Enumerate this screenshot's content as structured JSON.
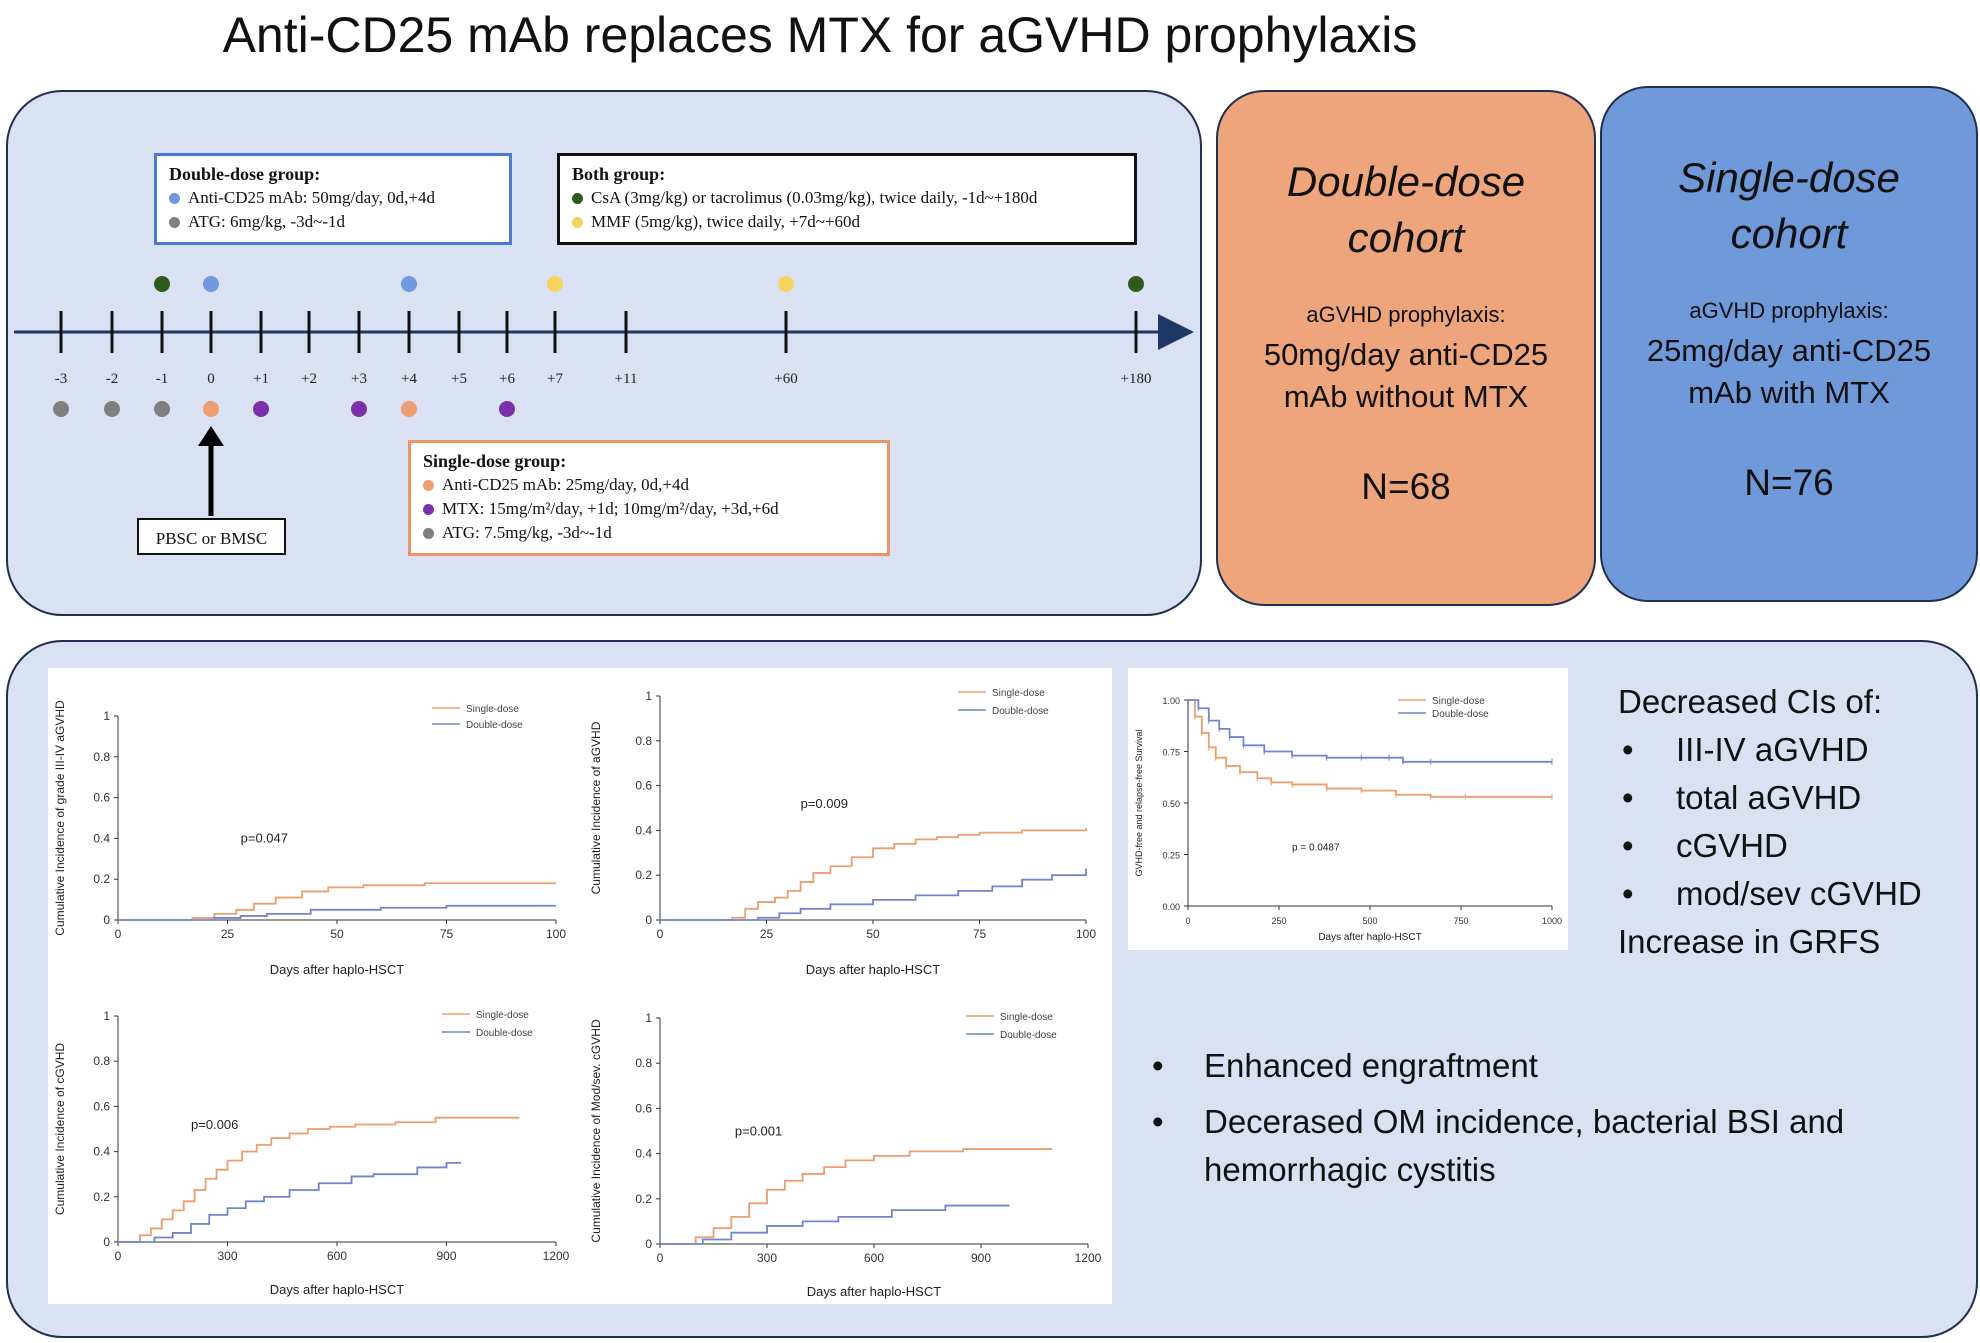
{
  "title": "Anti-CD25 mAb replaces MTX for aGVHD prophylaxis",
  "colors": {
    "panel_bg": "#d9e1f2",
    "double_orange": "#eea57c",
    "single_blue": "#6f99d9",
    "dot_green": "#2e5a1c",
    "dot_blue": "#6f9ae0",
    "dot_gray": "#7f7f7f",
    "dot_yellow": "#f7d35c",
    "dot_orange": "#ef9c6e",
    "dot_purple": "#7a2fa8",
    "curve_single": "#ef9c6e",
    "curve_double": "#6f86cf"
  },
  "timeline": {
    "days": [
      "-3",
      "-2",
      "-1",
      "0",
      "+1",
      "+2",
      "+3",
      "+4",
      "+5",
      "+6",
      "+7",
      "+11",
      "+60",
      "+180"
    ],
    "top_dots": [
      {
        "day": "-1",
        "color": "#2e5a1c"
      },
      {
        "day": "0",
        "color": "#6f9ae0"
      },
      {
        "day": "+4",
        "color": "#6f9ae0"
      },
      {
        "day": "+7",
        "color": "#f7d35c"
      },
      {
        "day": "+60",
        "color": "#f7d35c"
      },
      {
        "day": "+180",
        "color": "#2e5a1c"
      }
    ],
    "bottom_dots": [
      {
        "day": "-3",
        "color": "#7f7f7f"
      },
      {
        "day": "-2",
        "color": "#7f7f7f"
      },
      {
        "day": "-1",
        "color": "#7f7f7f"
      },
      {
        "day": "0",
        "color": "#ef9c6e"
      },
      {
        "day": "+1",
        "color": "#7a2fa8"
      },
      {
        "day": "+3",
        "color": "#7a2fa8"
      },
      {
        "day": "+4",
        "color": "#ef9c6e"
      },
      {
        "day": "+6",
        "color": "#7a2fa8"
      }
    ],
    "cell_source": "PBSC or BMSC"
  },
  "legend_double": {
    "title": "Double-dose group:",
    "items": [
      {
        "color": "#6f9ae0",
        "text": "Anti-CD25 mAb: 50mg/day, 0d,+4d"
      },
      {
        "color": "#7f7f7f",
        "text": "ATG: 6mg/kg, -3d~-1d"
      }
    ]
  },
  "legend_both": {
    "title": "Both group:",
    "items": [
      {
        "color": "#2e5a1c",
        "text": "CsA (3mg/kg) or tacrolimus (0.03mg/kg), twice daily, -1d~+180d"
      },
      {
        "color": "#f7d35c",
        "text": "MMF (5mg/kg), twice daily, +7d~+60d"
      }
    ]
  },
  "legend_single": {
    "title": "Single-dose group:",
    "items": [
      {
        "color": "#ef9c6e",
        "text": "Anti-CD25 mAb: 25mg/day, 0d,+4d"
      },
      {
        "color": "#7a2fa8",
        "text": "MTX: 15mg/m²/day, +1d; 10mg/m²/day, +3d,+6d"
      },
      {
        "color": "#7f7f7f",
        "text": "ATG: 7.5mg/kg, -3d~-1d"
      }
    ]
  },
  "cohort_double": {
    "title_line1": "Double-dose",
    "title_line2": "cohort",
    "subtitle": "aGVHD prophylaxis:",
    "dose_line1": "50mg/day anti-CD25",
    "dose_line2": "mAb without MTX",
    "n": "N=68"
  },
  "cohort_single": {
    "title_line1": "Single-dose",
    "title_line2": "cohort",
    "subtitle": "aGVHD prophylaxis:",
    "dose_line1": "25mg/day anti-CD25",
    "dose_line2": "mAb with MTX",
    "n": "N=76"
  },
  "chart_data": [
    {
      "type": "line",
      "ylabel": "Cumulative Incidence of grade III-IV aGVHD",
      "xlabel": "Days after haplo-HSCT",
      "xlim": [
        0,
        100
      ],
      "ylim": [
        0,
        1
      ],
      "xticks": [
        "0",
        "25",
        "50",
        "75",
        "100"
      ],
      "yticks": [
        "0",
        "0.2",
        "0.4",
        "0.6",
        "0.8",
        "1"
      ],
      "annotation": "p=0.047",
      "annotation_at": [
        28,
        0.38
      ],
      "series": [
        {
          "name": "Single-dose",
          "color": "#ef9c6e",
          "x": [
            0,
            17,
            22,
            27,
            31,
            36,
            42,
            48,
            56,
            70,
            100
          ],
          "y": [
            0,
            0.01,
            0.03,
            0.05,
            0.08,
            0.11,
            0.14,
            0.16,
            0.17,
            0.18,
            0.18
          ]
        },
        {
          "name": "Double-dose",
          "color": "#6f86cf",
          "x": [
            0,
            22,
            28,
            34,
            44,
            60,
            75,
            100
          ],
          "y": [
            0,
            0.01,
            0.02,
            0.03,
            0.05,
            0.06,
            0.07,
            0.07
          ]
        }
      ]
    },
    {
      "type": "line",
      "ylabel": "Cumulative Incidence of aGVHD",
      "xlabel": "Days after haplo-HSCT",
      "xlim": [
        0,
        100
      ],
      "ylim": [
        0,
        1
      ],
      "xticks": [
        "0",
        "25",
        "50",
        "75",
        "100"
      ],
      "yticks": [
        "0",
        "0.2",
        "0.4",
        "0.6",
        "0.8",
        "1"
      ],
      "annotation": "p=0.009",
      "annotation_at": [
        33,
        0.5
      ],
      "series": [
        {
          "name": "Single-dose",
          "color": "#ef9c6e",
          "x": [
            0,
            17,
            20,
            23,
            27,
            30,
            33,
            36,
            40,
            45,
            50,
            55,
            60,
            65,
            70,
            75,
            85,
            95,
            100
          ],
          "y": [
            0,
            0.01,
            0.05,
            0.08,
            0.1,
            0.13,
            0.17,
            0.21,
            0.24,
            0.28,
            0.32,
            0.34,
            0.36,
            0.37,
            0.38,
            0.39,
            0.4,
            0.4,
            0.41
          ]
        },
        {
          "name": "Double-dose",
          "color": "#6f86cf",
          "x": [
            0,
            23,
            28,
            33,
            40,
            50,
            60,
            70,
            78,
            85,
            92,
            100
          ],
          "y": [
            0,
            0.01,
            0.03,
            0.05,
            0.07,
            0.09,
            0.11,
            0.13,
            0.15,
            0.18,
            0.2,
            0.23
          ]
        }
      ]
    },
    {
      "type": "line",
      "ylabel": "Cumulative Incidence of cGVHD",
      "xlabel": "Days after haplo-HSCT",
      "xlim": [
        0,
        1200
      ],
      "ylim": [
        0,
        1
      ],
      "xticks": [
        "0",
        "300",
        "600",
        "900",
        "1200"
      ],
      "yticks": [
        "0",
        "0.2",
        "0.4",
        "0.6",
        "0.8",
        "1"
      ],
      "annotation": "p=0.006",
      "annotation_at": [
        200,
        0.5
      ],
      "series": [
        {
          "name": "Single-dose",
          "color": "#ef9c6e",
          "x": [
            0,
            60,
            90,
            120,
            150,
            180,
            210,
            240,
            270,
            300,
            340,
            380,
            420,
            470,
            520,
            580,
            650,
            760,
            870,
            1000,
            1100
          ],
          "y": [
            0,
            0.03,
            0.06,
            0.1,
            0.14,
            0.18,
            0.23,
            0.28,
            0.32,
            0.36,
            0.4,
            0.43,
            0.46,
            0.48,
            0.5,
            0.51,
            0.52,
            0.53,
            0.55,
            0.55,
            0.55
          ]
        },
        {
          "name": "Double-dose",
          "color": "#6f86cf",
          "x": [
            0,
            100,
            150,
            200,
            250,
            300,
            350,
            400,
            470,
            550,
            640,
            700,
            820,
            900,
            940
          ],
          "y": [
            0,
            0.02,
            0.04,
            0.08,
            0.12,
            0.15,
            0.18,
            0.2,
            0.23,
            0.26,
            0.29,
            0.3,
            0.33,
            0.35,
            0.35
          ]
        }
      ]
    },
    {
      "type": "line",
      "ylabel": "Cumulative Incidence of Mod/sev. cGVHD",
      "xlabel": "Days after haplo-HSCT",
      "xlim": [
        0,
        1200
      ],
      "ylim": [
        0,
        1
      ],
      "xticks": [
        "0",
        "300",
        "600",
        "900",
        "1200"
      ],
      "yticks": [
        "0",
        "0.2",
        "0.4",
        "0.6",
        "0.8",
        "1"
      ],
      "annotation": "p=0.001",
      "annotation_at": [
        210,
        0.48
      ],
      "series": [
        {
          "name": "Single-dose",
          "color": "#ef9c6e",
          "x": [
            0,
            100,
            150,
            200,
            250,
            300,
            350,
            400,
            460,
            520,
            600,
            700,
            850,
            1000,
            1100
          ],
          "y": [
            0,
            0.03,
            0.07,
            0.12,
            0.18,
            0.24,
            0.28,
            0.31,
            0.34,
            0.37,
            0.39,
            0.41,
            0.42,
            0.42,
            0.42
          ]
        },
        {
          "name": "Double-dose",
          "color": "#6f86cf",
          "x": [
            0,
            120,
            200,
            300,
            400,
            500,
            650,
            800,
            980
          ],
          "y": [
            0,
            0.02,
            0.05,
            0.08,
            0.1,
            0.12,
            0.15,
            0.17,
            0.17
          ]
        }
      ]
    },
    {
      "type": "line",
      "ylabel": "GVHD-free and relapse-free Survival",
      "xlabel": "Days after haplo-HSCT",
      "xlim": [
        0,
        1050
      ],
      "ylim": [
        0,
        1
      ],
      "xticks": [
        "0",
        "250",
        "500",
        "750",
        "1000"
      ],
      "yticks": [
        "0.00",
        "0.25",
        "0.50",
        "0.75",
        "1.00"
      ],
      "annotation": "p = 0.0487",
      "annotation_at": [
        300,
        0.27
      ],
      "series": [
        {
          "name": "Single-dose",
          "color": "#ef9c6e",
          "x": [
            0,
            20,
            40,
            60,
            80,
            110,
            150,
            200,
            240,
            300,
            400,
            500,
            600,
            700,
            800,
            1050
          ],
          "y": [
            1.0,
            0.92,
            0.84,
            0.77,
            0.72,
            0.68,
            0.65,
            0.62,
            0.6,
            0.59,
            0.57,
            0.56,
            0.54,
            0.53,
            0.53,
            0.53
          ]
        },
        {
          "name": "Double-dose",
          "color": "#6f86cf",
          "x": [
            0,
            30,
            60,
            90,
            120,
            160,
            220,
            300,
            400,
            500,
            580,
            620,
            700,
            1050
          ],
          "y": [
            1.0,
            0.96,
            0.9,
            0.86,
            0.82,
            0.78,
            0.75,
            0.73,
            0.72,
            0.72,
            0.72,
            0.7,
            0.7,
            0.7
          ]
        }
      ]
    }
  ],
  "findings": {
    "heading": "Decreased CIs of:",
    "items": [
      "III-IV aGVHD",
      "total aGVHD",
      "cGVHD",
      "mod/sev cGVHD"
    ],
    "footer": "Increase in GRFS"
  },
  "other_findings": [
    "Enhanced engraftment",
    "Decerased OM incidence, bacterial BSI and hemorrhagic cystitis"
  ]
}
